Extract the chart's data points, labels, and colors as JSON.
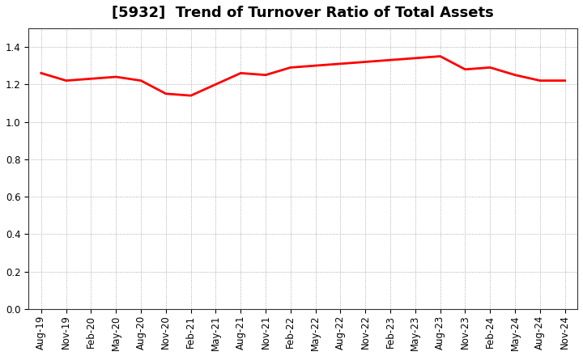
{
  "title": "[5932]  Trend of Turnover Ratio of Total Assets",
  "x_labels": [
    "Aug-19",
    "Nov-19",
    "Feb-20",
    "May-20",
    "Aug-20",
    "Nov-20",
    "Feb-21",
    "May-21",
    "Aug-21",
    "Nov-21",
    "Feb-22",
    "May-22",
    "Aug-22",
    "Nov-22",
    "Feb-23",
    "May-23",
    "Aug-23",
    "Nov-23",
    "Feb-24",
    "May-24",
    "Aug-24",
    "Nov-24"
  ],
  "y_values": [
    1.26,
    1.22,
    1.23,
    1.24,
    1.22,
    1.15,
    1.14,
    1.2,
    1.26,
    1.25,
    1.29,
    1.3,
    1.31,
    1.32,
    1.33,
    1.34,
    1.35,
    1.28,
    1.29,
    1.25,
    1.22,
    1.22
  ],
  "line_color": "#ff0000",
  "line_width": 2.0,
  "ylim": [
    0.0,
    1.5
  ],
  "yticks": [
    0.0,
    0.2,
    0.4,
    0.6,
    0.8,
    1.0,
    1.2,
    1.4
  ],
  "background_color": "#ffffff",
  "grid_color": "#999999",
  "title_fontsize": 13,
  "tick_fontsize": 8.5
}
